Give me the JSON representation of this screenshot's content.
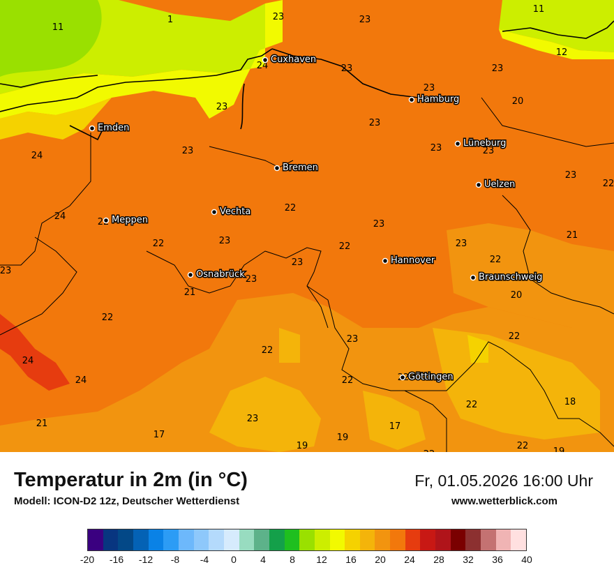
{
  "map": {
    "labels": [
      "11",
      "1",
      "23",
      "23",
      "11",
      "24",
      "23",
      "12",
      "23",
      "23",
      "23",
      "20",
      "23",
      "23",
      "24",
      "23",
      "23",
      "23",
      "24",
      "22",
      "22",
      "22",
      "23",
      "23",
      "22",
      "23",
      "22",
      "23",
      "23",
      "21",
      "21",
      "23",
      "20",
      "22",
      "22",
      "23",
      "24",
      "22",
      "24",
      "22",
      "22",
      "22",
      "18",
      "21",
      "23",
      "17",
      "17",
      "19",
      "19",
      "22",
      "22",
      "22",
      "19"
    ],
    "cities": [
      "Cuxhaven",
      "Hamburg",
      "Emden",
      "Bremen",
      "Lüneburg",
      "Uelzen",
      "Vechta",
      "Meppen",
      "Osnabrück",
      "Hannover",
      "Braunschweig",
      "Göttingen"
    ]
  },
  "footer": {
    "title": "Temperatur in 2m (in °C)",
    "subtitle": "Modell: ICON-D2 12z, Deutscher Wetterdienst",
    "datetime": "Fr, 01.05.2026 16:00 Uhr",
    "website": "www.wetterblick.com"
  },
  "legend": {
    "colors": [
      "#3a0080",
      "#083580",
      "#034887",
      "#0462b5",
      "#0a82e6",
      "#2c9cf5",
      "#6db8fb",
      "#8ec8fb",
      "#b4dafc",
      "#d6ebfd",
      "#98dcc0",
      "#5db28a",
      "#14a04a",
      "#1fbf1f",
      "#9ae000",
      "#ccee00",
      "#f2fa00",
      "#f5d200",
      "#f4b40a",
      "#f2940f",
      "#f2780c",
      "#e63c0f",
      "#c81814",
      "#b0141a",
      "#7a0000",
      "#8c3030",
      "#c47272",
      "#f0b4b4",
      "#ffe0e0"
    ],
    "ticks": [
      "-20",
      "-16",
      "-12",
      "-8",
      "-4",
      "0",
      "4",
      "8",
      "12",
      "16",
      "20",
      "24",
      "28",
      "32",
      "36",
      "40"
    ]
  }
}
